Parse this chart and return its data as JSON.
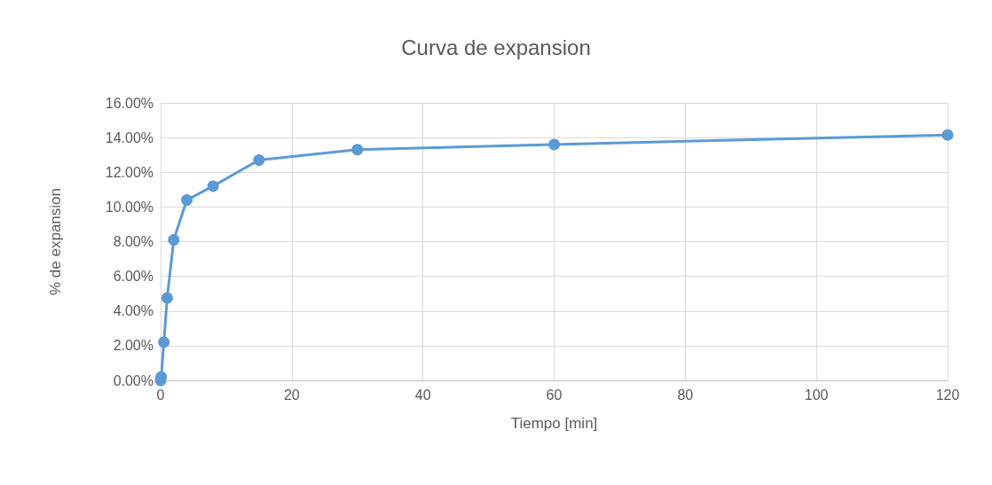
{
  "chart_data": {
    "type": "line",
    "title": "Curva de expansion",
    "xlabel": "Tiempo [min]",
    "ylabel": "% de expansion",
    "x": [
      0,
      0.1,
      0.5,
      1,
      2,
      4,
      8,
      15,
      30,
      60,
      120
    ],
    "series": [
      {
        "color": "#5b9bd5",
        "values": [
          0,
          0.2,
          2.2,
          4.75,
          8.1,
          10.4,
          11.2,
          12.7,
          13.3,
          13.6,
          14.15
        ]
      }
    ],
    "xlim": [
      0,
      120
    ],
    "xticks": [
      0,
      20,
      40,
      60,
      80,
      100,
      120
    ],
    "ylim": [
      0,
      16
    ],
    "yticks": [
      {
        "value": 0,
        "label": "0.00%"
      },
      {
        "value": 2,
        "label": "2.00%"
      },
      {
        "value": 4,
        "label": "4.00%"
      },
      {
        "value": 6,
        "label": "6.00%"
      },
      {
        "value": 8,
        "label": "8.00%"
      },
      {
        "value": 10,
        "label": "10.00%"
      },
      {
        "value": 12,
        "label": "12.00%"
      },
      {
        "value": 14,
        "label": "14.00%"
      },
      {
        "value": 16,
        "label": "16.00%"
      }
    ],
    "grid": true,
    "marker": "circle",
    "line_style": "solid"
  }
}
